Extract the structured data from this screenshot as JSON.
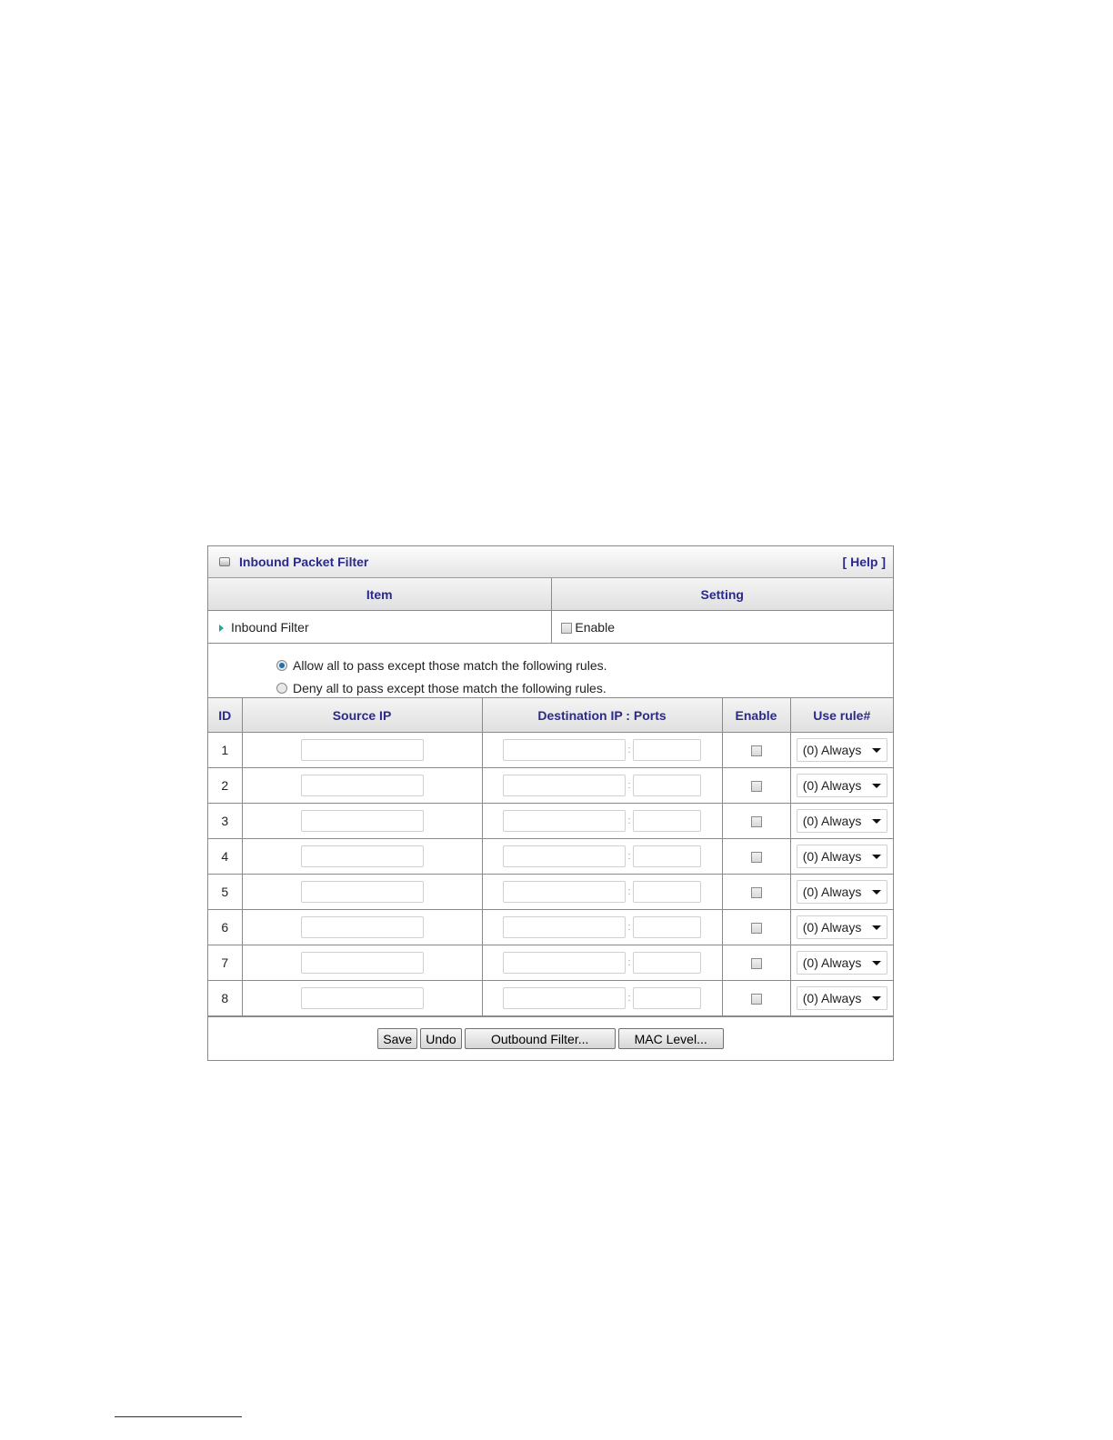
{
  "panel": {
    "title": "Inbound Packet Filter",
    "help": "[ Help ]"
  },
  "header": {
    "item": "Item",
    "setting": "Setting"
  },
  "inbound_filter": {
    "label": "Inbound Filter",
    "enable_label": "Enable",
    "enabled": false
  },
  "mode": {
    "options": [
      "Allow all to pass except those match the following rules.",
      "Deny all to pass except those match the following rules."
    ],
    "selected": 0
  },
  "rules_table": {
    "columns": [
      "ID",
      "Source IP",
      "Destination IP : Ports",
      "Enable",
      "Use rule#"
    ],
    "rows": [
      {
        "id": "1",
        "source_ip": "",
        "dest_ip": "",
        "dest_port": "",
        "enabled": false,
        "rule": "(0) Always"
      },
      {
        "id": "2",
        "source_ip": "",
        "dest_ip": "",
        "dest_port": "",
        "enabled": false,
        "rule": "(0) Always"
      },
      {
        "id": "3",
        "source_ip": "",
        "dest_ip": "",
        "dest_port": "",
        "enabled": false,
        "rule": "(0) Always"
      },
      {
        "id": "4",
        "source_ip": "",
        "dest_ip": "",
        "dest_port": "",
        "enabled": false,
        "rule": "(0) Always"
      },
      {
        "id": "5",
        "source_ip": "",
        "dest_ip": "",
        "dest_port": "",
        "enabled": false,
        "rule": "(0) Always"
      },
      {
        "id": "6",
        "source_ip": "",
        "dest_ip": "",
        "dest_port": "",
        "enabled": false,
        "rule": "(0) Always"
      },
      {
        "id": "7",
        "source_ip": "",
        "dest_ip": "",
        "dest_port": "",
        "enabled": false,
        "rule": "(0) Always"
      },
      {
        "id": "8",
        "source_ip": "",
        "dest_ip": "",
        "dest_port": "",
        "enabled": false,
        "rule": "(0) Always"
      }
    ]
  },
  "buttons": {
    "save": "Save",
    "undo": "Undo",
    "outbound": "Outbound Filter...",
    "mac": "MAC Level..."
  },
  "colors": {
    "heading": "#2a2a8c",
    "bullet": "#1aa6a6",
    "radio_selected": "#1d6fb0"
  }
}
